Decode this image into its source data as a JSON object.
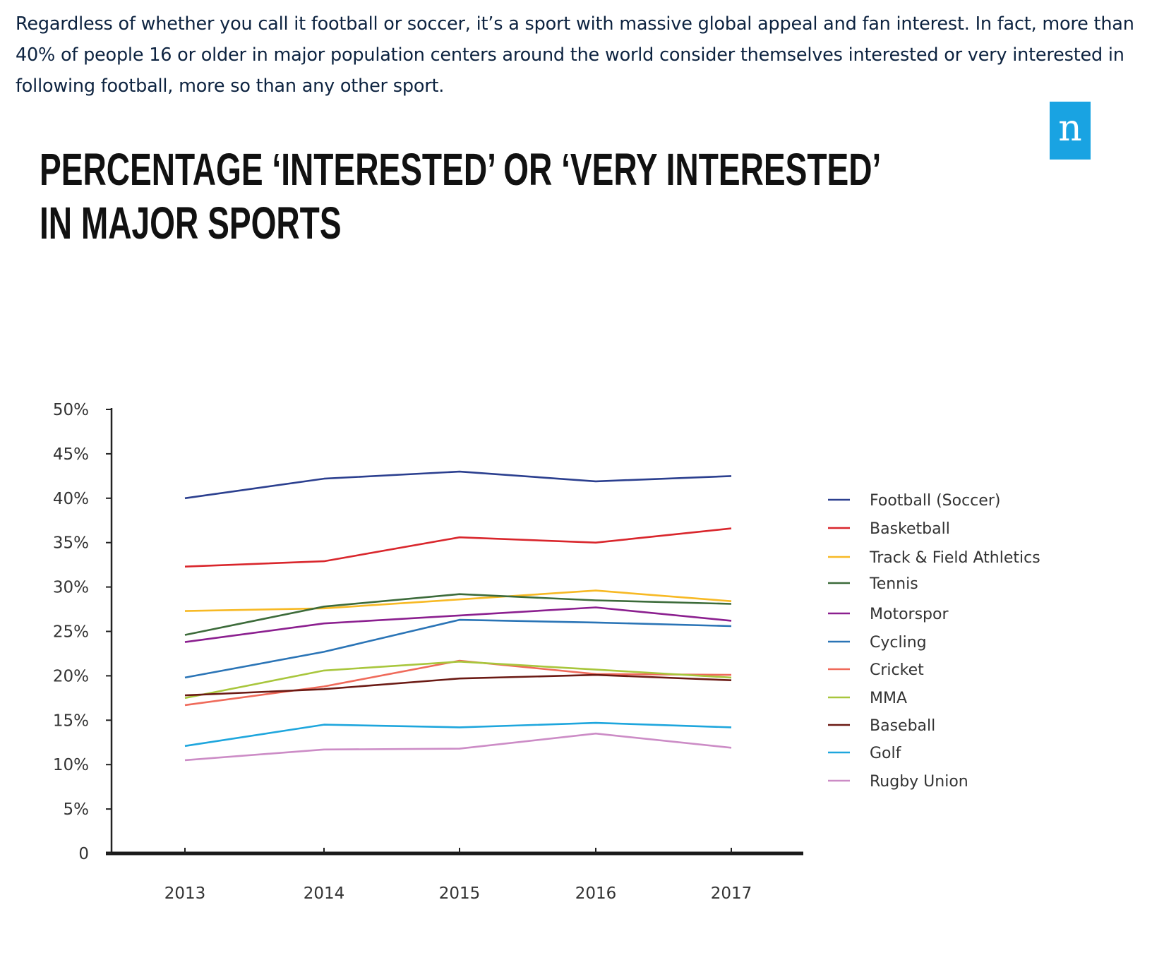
{
  "article": {
    "paragraph": "Regardless of whether you call it football or soccer, it’s a sport with massive global appeal and fan interest. In fact, more than 40% of people 16 or older in major population centers around the world consider themselves interested or very interested in following football, more so than any other sport."
  },
  "logo": {
    "letter": "n",
    "color": "#19a3e2"
  },
  "chart_data": {
    "type": "line",
    "title_lines": [
      "PERCENTAGE ‘INTERESTED’ OR ‘VERY INTERESTED’",
      "IN MAJOR SPORTS"
    ],
    "xlabel": "",
    "ylabel": "",
    "categories": [
      "2013",
      "2014",
      "2015",
      "2016",
      "2017"
    ],
    "y_ticks": [
      0,
      5,
      10,
      15,
      20,
      25,
      30,
      35,
      40,
      45,
      50
    ],
    "y_tick_labels": [
      "0",
      "5%",
      "10%",
      "15%",
      "20%",
      "25%",
      "30%",
      "35%",
      "40%",
      "45%",
      "50%"
    ],
    "ylim": [
      0,
      50
    ],
    "grid": false,
    "legend_position": "right",
    "series": [
      {
        "name": "Football (Soccer)",
        "color": "#2b3f8f",
        "values": [
          40.0,
          42.2,
          43.0,
          41.9,
          42.5
        ]
      },
      {
        "name": "Basketball",
        "color": "#d9262c",
        "values": [
          32.3,
          32.9,
          35.6,
          35.0,
          36.6
        ]
      },
      {
        "name": "Track & Field Athletics",
        "color": "#f7b924",
        "values": [
          27.3,
          27.6,
          28.6,
          29.6,
          28.4
        ]
      },
      {
        "name": "Tennis",
        "color": "#3c6b3a",
        "values": [
          24.6,
          27.8,
          29.2,
          28.5,
          28.1
        ]
      },
      {
        "name": "Motorspor",
        "color": "#8b1f8f",
        "values": [
          23.8,
          25.9,
          26.8,
          27.7,
          26.2
        ]
      },
      {
        "name": "Cycling",
        "color": "#2a74b6",
        "values": [
          19.8,
          22.7,
          26.3,
          26.0,
          25.6
        ]
      },
      {
        "name": "Cricket",
        "color": "#ef6a5a",
        "values": [
          16.7,
          18.8,
          21.7,
          20.2,
          20.1
        ]
      },
      {
        "name": "MMA",
        "color": "#a8c63c",
        "values": [
          17.5,
          20.6,
          21.6,
          20.7,
          19.8
        ]
      },
      {
        "name": "Baseball",
        "color": "#6b1a14",
        "values": [
          17.8,
          18.5,
          19.7,
          20.1,
          19.5
        ]
      },
      {
        "name": "Golf",
        "color": "#1ea6dd",
        "values": [
          12.1,
          14.5,
          14.2,
          14.7,
          14.2
        ]
      },
      {
        "name": "Rugby Union",
        "color": "#cc8cc6",
        "values": [
          10.5,
          11.7,
          11.8,
          13.5,
          11.9
        ]
      }
    ]
  }
}
